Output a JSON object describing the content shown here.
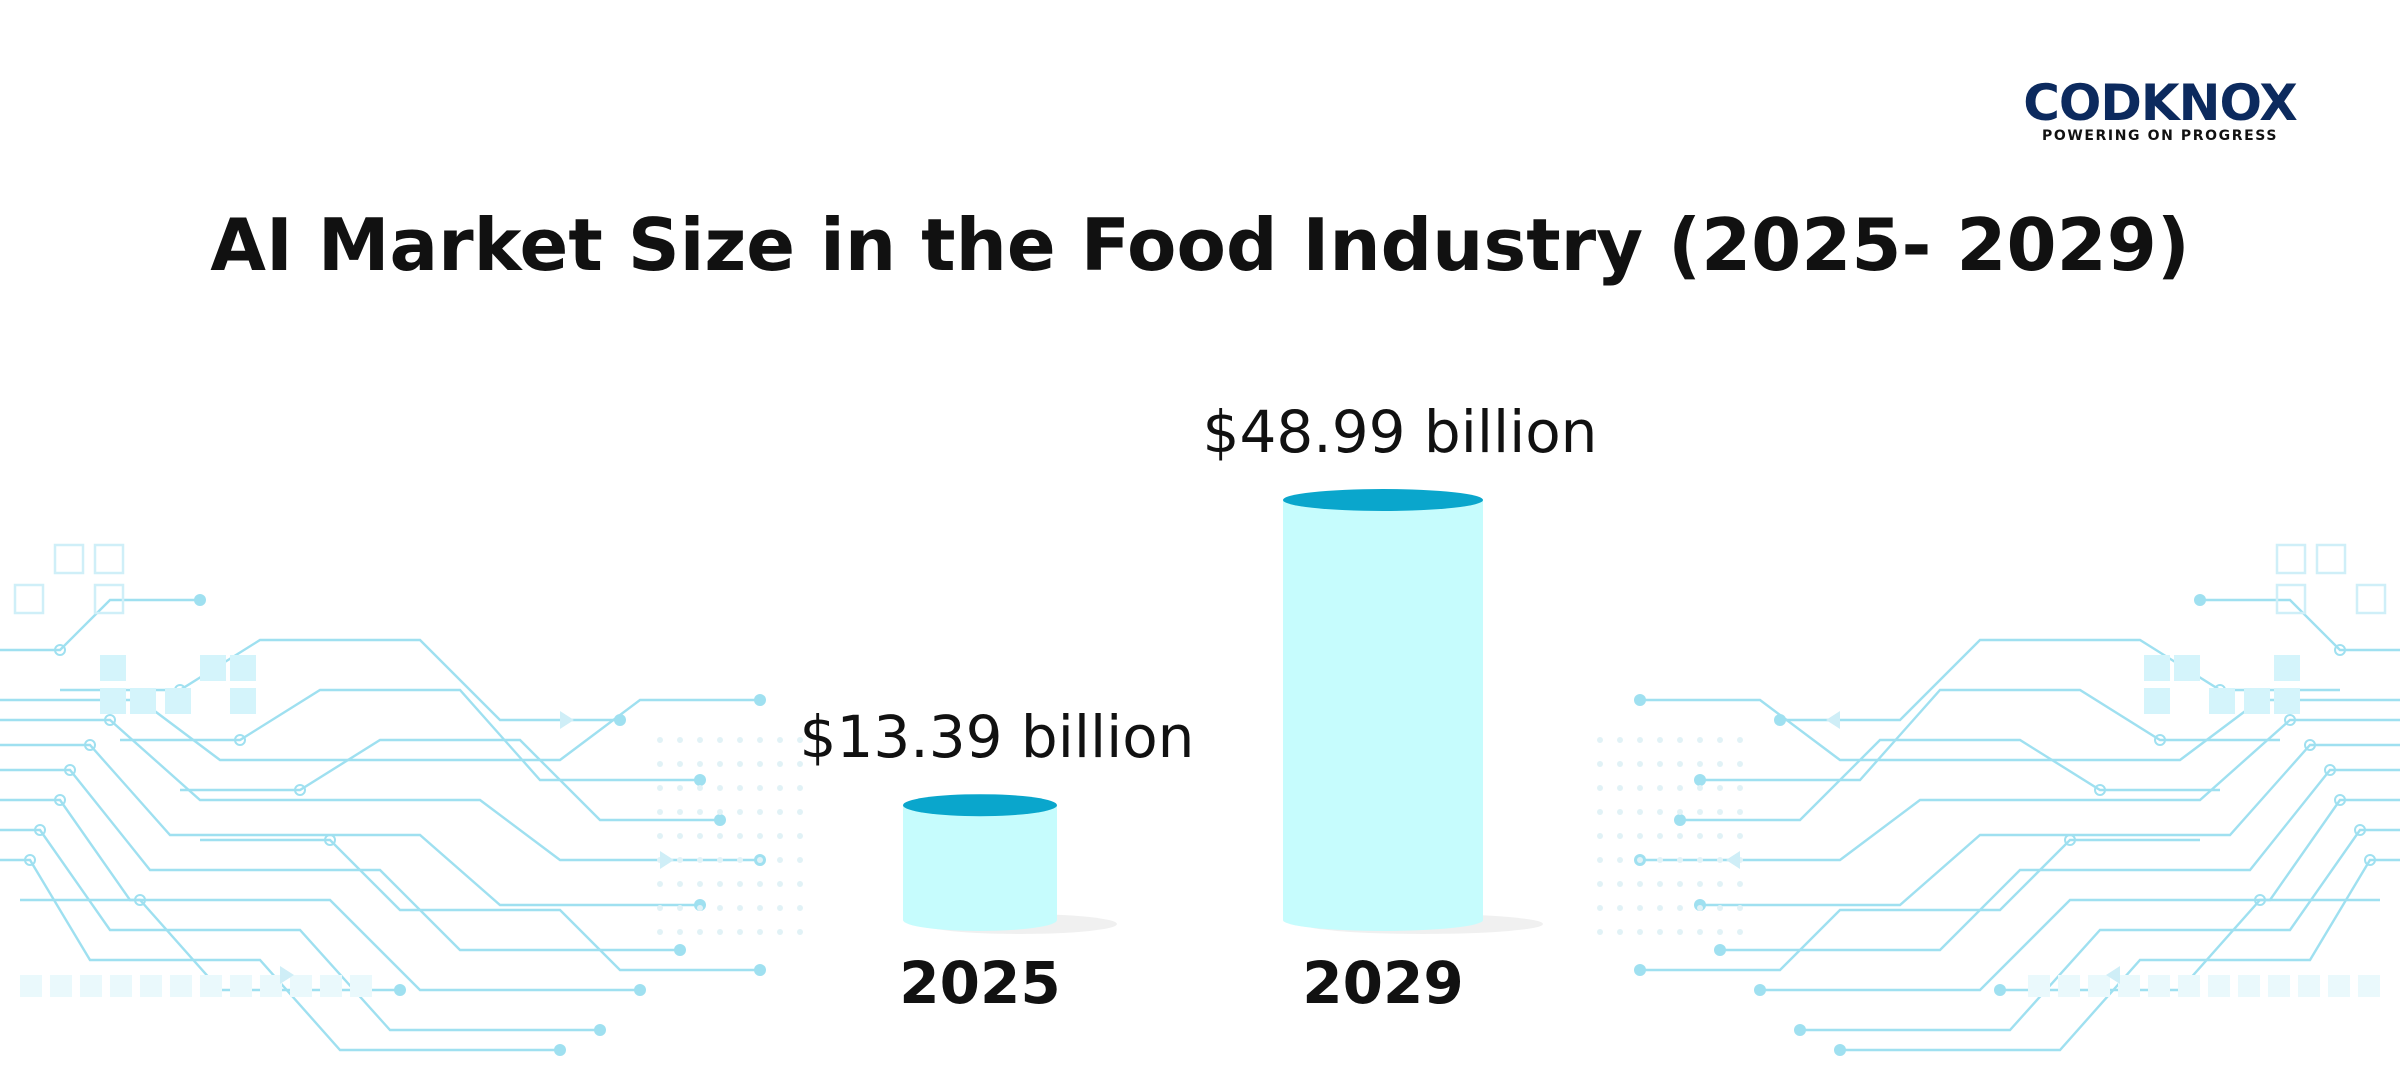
{
  "logo": {
    "name": "CODKNOX",
    "tagline": "POWERING ON PROGRESS",
    "brand_color": "#0c2a5e",
    "accent_color": "#1a5fc8"
  },
  "colors": {
    "bar_body": "#c6fcfd",
    "bar_top": "#0aa6cc",
    "circuit": "#7fd6ec"
  },
  "chart_data": {
    "type": "bar",
    "title": "AI Market Size in the Food Industry (2025- 2029)",
    "xlabel": "",
    "ylabel": "",
    "categories": [
      "2025",
      "2029"
    ],
    "values": [
      13.39,
      48.99
    ],
    "value_labels": [
      "$13.39 billion",
      "$48.99 billion"
    ],
    "ylim": [
      0,
      48.99
    ],
    "grid": false,
    "legend": "none"
  }
}
